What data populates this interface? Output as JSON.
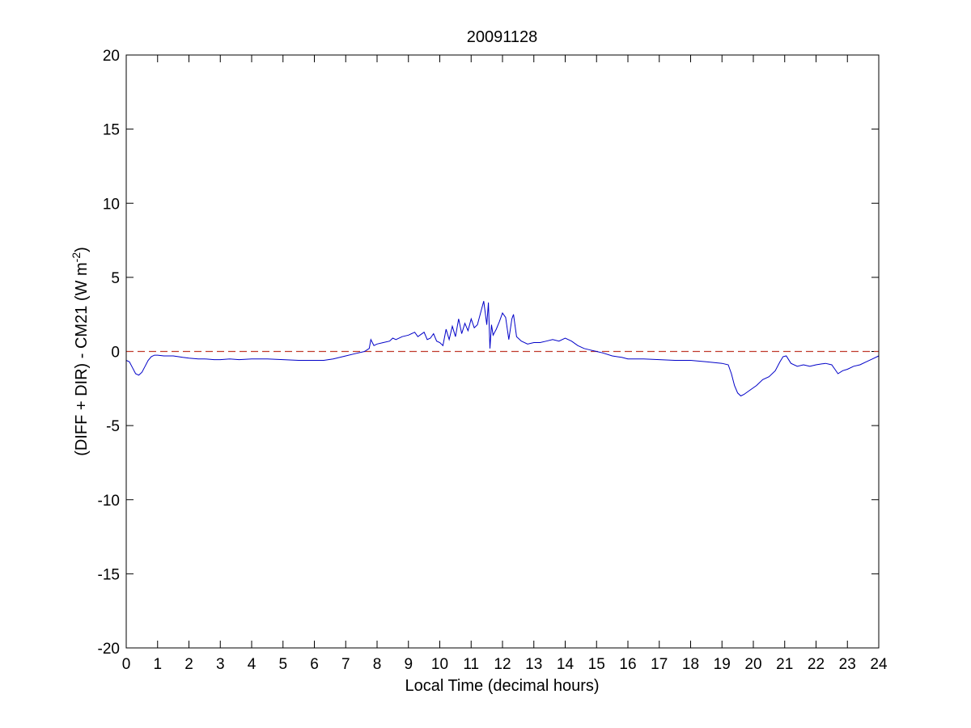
{
  "chart_data": {
    "type": "line",
    "title": "20091128",
    "xlabel": "Local Time (decimal hours)",
    "ylabel_main": "(DIFF + DIR) - CM21 (W m",
    "ylabel_sup": "-2",
    "ylabel_close": ")",
    "xlim": [
      0,
      24
    ],
    "ylim": [
      -20,
      20
    ],
    "xticks": [
      0,
      1,
      2,
      3,
      4,
      5,
      6,
      7,
      8,
      9,
      10,
      11,
      12,
      13,
      14,
      15,
      16,
      17,
      18,
      19,
      20,
      21,
      22,
      23,
      24
    ],
    "yticks": [
      -20,
      -15,
      -10,
      -5,
      0,
      5,
      10,
      15,
      20
    ],
    "grid": false,
    "legend": false,
    "reference_line": {
      "y": 0,
      "style": "dashed",
      "color": "#c0392b"
    },
    "series": [
      {
        "color": "#0000c8",
        "points": [
          [
            0.0,
            -0.6
          ],
          [
            0.1,
            -0.7
          ],
          [
            0.2,
            -1.1
          ],
          [
            0.3,
            -1.5
          ],
          [
            0.4,
            -1.6
          ],
          [
            0.5,
            -1.4
          ],
          [
            0.6,
            -1.0
          ],
          [
            0.7,
            -0.6
          ],
          [
            0.8,
            -0.35
          ],
          [
            0.9,
            -0.25
          ],
          [
            1.0,
            -0.25
          ],
          [
            1.2,
            -0.3
          ],
          [
            1.5,
            -0.3
          ],
          [
            1.8,
            -0.4
          ],
          [
            2.0,
            -0.45
          ],
          [
            2.3,
            -0.5
          ],
          [
            2.5,
            -0.5
          ],
          [
            2.8,
            -0.55
          ],
          [
            3.0,
            -0.55
          ],
          [
            3.3,
            -0.5
          ],
          [
            3.6,
            -0.55
          ],
          [
            4.0,
            -0.5
          ],
          [
            4.5,
            -0.5
          ],
          [
            5.0,
            -0.55
          ],
          [
            5.5,
            -0.6
          ],
          [
            6.0,
            -0.6
          ],
          [
            6.3,
            -0.6
          ],
          [
            6.6,
            -0.5
          ],
          [
            7.0,
            -0.3
          ],
          [
            7.3,
            -0.15
          ],
          [
            7.6,
            0.0
          ],
          [
            7.75,
            0.2
          ],
          [
            7.8,
            0.8
          ],
          [
            7.9,
            0.4
          ],
          [
            8.0,
            0.5
          ],
          [
            8.2,
            0.6
          ],
          [
            8.4,
            0.7
          ],
          [
            8.5,
            0.9
          ],
          [
            8.6,
            0.8
          ],
          [
            8.8,
            1.0
          ],
          [
            9.0,
            1.1
          ],
          [
            9.2,
            1.3
          ],
          [
            9.3,
            1.0
          ],
          [
            9.5,
            1.3
          ],
          [
            9.6,
            0.8
          ],
          [
            9.7,
            0.9
          ],
          [
            9.8,
            1.2
          ],
          [
            9.9,
            0.7
          ],
          [
            10.0,
            0.6
          ],
          [
            10.1,
            0.4
          ],
          [
            10.2,
            1.5
          ],
          [
            10.3,
            0.8
          ],
          [
            10.4,
            1.7
          ],
          [
            10.5,
            1.0
          ],
          [
            10.6,
            2.2
          ],
          [
            10.7,
            1.2
          ],
          [
            10.8,
            1.9
          ],
          [
            10.9,
            1.4
          ],
          [
            11.0,
            2.2
          ],
          [
            11.1,
            1.6
          ],
          [
            11.2,
            1.8
          ],
          [
            11.3,
            2.6
          ],
          [
            11.4,
            3.4
          ],
          [
            11.5,
            1.8
          ],
          [
            11.55,
            3.3
          ],
          [
            11.6,
            0.2
          ],
          [
            11.65,
            1.8
          ],
          [
            11.7,
            1.1
          ],
          [
            11.8,
            1.5
          ],
          [
            11.9,
            2.0
          ],
          [
            12.0,
            2.6
          ],
          [
            12.1,
            2.3
          ],
          [
            12.2,
            0.8
          ],
          [
            12.3,
            2.2
          ],
          [
            12.35,
            2.5
          ],
          [
            12.45,
            1.0
          ],
          [
            12.6,
            0.7
          ],
          [
            12.8,
            0.5
          ],
          [
            13.0,
            0.6
          ],
          [
            13.2,
            0.6
          ],
          [
            13.4,
            0.7
          ],
          [
            13.6,
            0.8
          ],
          [
            13.8,
            0.7
          ],
          [
            14.0,
            0.9
          ],
          [
            14.2,
            0.7
          ],
          [
            14.4,
            0.4
          ],
          [
            14.6,
            0.2
          ],
          [
            14.8,
            0.1
          ],
          [
            15.0,
            0.0
          ],
          [
            15.2,
            -0.1
          ],
          [
            15.5,
            -0.3
          ],
          [
            15.8,
            -0.4
          ],
          [
            16.0,
            -0.5
          ],
          [
            16.5,
            -0.5
          ],
          [
            17.0,
            -0.55
          ],
          [
            17.5,
            -0.6
          ],
          [
            18.0,
            -0.6
          ],
          [
            18.5,
            -0.7
          ],
          [
            19.0,
            -0.8
          ],
          [
            19.2,
            -0.9
          ],
          [
            19.3,
            -1.5
          ],
          [
            19.4,
            -2.3
          ],
          [
            19.5,
            -2.8
          ],
          [
            19.6,
            -3.0
          ],
          [
            19.7,
            -2.9
          ],
          [
            19.9,
            -2.6
          ],
          [
            20.1,
            -2.3
          ],
          [
            20.3,
            -1.9
          ],
          [
            20.5,
            -1.7
          ],
          [
            20.7,
            -1.3
          ],
          [
            20.85,
            -0.7
          ],
          [
            20.95,
            -0.35
          ],
          [
            21.05,
            -0.3
          ],
          [
            21.2,
            -0.8
          ],
          [
            21.4,
            -1.0
          ],
          [
            21.6,
            -0.9
          ],
          [
            21.8,
            -1.0
          ],
          [
            22.0,
            -0.9
          ],
          [
            22.3,
            -0.8
          ],
          [
            22.5,
            -0.9
          ],
          [
            22.6,
            -1.2
          ],
          [
            22.7,
            -1.5
          ],
          [
            22.85,
            -1.3
          ],
          [
            23.0,
            -1.2
          ],
          [
            23.2,
            -1.0
          ],
          [
            23.4,
            -0.9
          ],
          [
            23.6,
            -0.7
          ],
          [
            23.8,
            -0.5
          ],
          [
            24.0,
            -0.3
          ]
        ]
      }
    ]
  }
}
